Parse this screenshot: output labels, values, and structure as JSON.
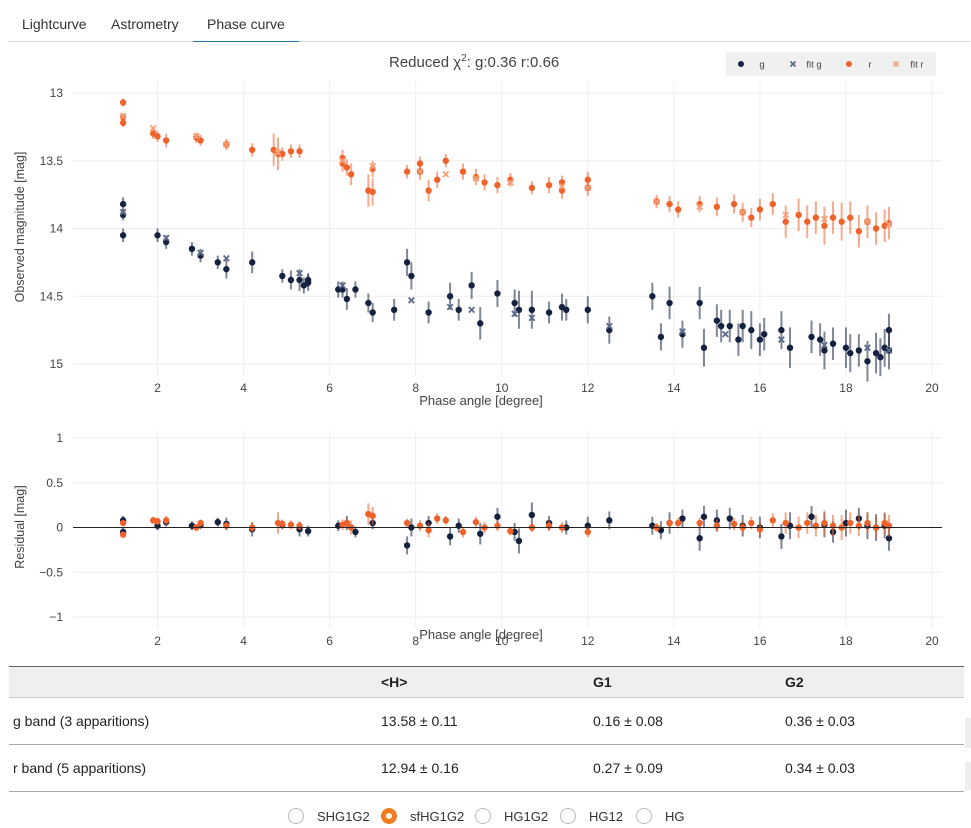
{
  "tabs": [
    {
      "label": "Lightcurve",
      "active": false
    },
    {
      "label": "Astrometry",
      "active": false
    },
    {
      "label": "Phase curve",
      "active": true
    }
  ],
  "colors": {
    "g": "#15223f",
    "g_fit": "#5c6c8a",
    "r": "#f0622b",
    "r_fit": "#f5a07a",
    "tab_underline": "#1f77b4",
    "radio_checked": "#f07d1e"
  },
  "chart_data": [
    {
      "type": "scatter",
      "title_prefix": "Reduced",
      "title_chi": "χ",
      "title_sup": "2",
      "title_g": "g:0.36",
      "title_r": "r:0.66",
      "xlabel": "Phase angle [degree]",
      "ylabel": "Observed magnitude [mag]",
      "xlim": [
        0.5,
        20
      ],
      "ylim": [
        13,
        15
      ],
      "y_reversed": true,
      "xticks": [
        2,
        4,
        6,
        8,
        10,
        12,
        14,
        16,
        18,
        20
      ],
      "yticks": [
        13,
        13.5,
        14,
        14.5,
        15
      ],
      "ytick_labels": [
        "13",
        "13.5",
        "14",
        "14.5",
        "15"
      ],
      "grid": true,
      "legend_position": "top-right",
      "legend": [
        {
          "label": "g",
          "symbol": "dot",
          "color": "#15223f"
        },
        {
          "label": "fit g",
          "symbol": "x",
          "color": "#5c6c8a"
        },
        {
          "label": "r",
          "symbol": "dot",
          "color": "#f0622b"
        },
        {
          "label": "fit r",
          "symbol": "x",
          "color": "#f5a07a"
        }
      ],
      "series": [
        {
          "name": "g",
          "mode": "markers+errorbars",
          "x": [
            1.2,
            1.2,
            1.2,
            2.0,
            2.2,
            2.8,
            3.0,
            3.4,
            3.6,
            4.2,
            4.9,
            5.1,
            5.3,
            5.4,
            5.5,
            5.5,
            6.2,
            6.3,
            6.4,
            6.6,
            6.9,
            7.0,
            7.5,
            7.8,
            7.9,
            8.3,
            8.8,
            9.0,
            9.3,
            9.5,
            9.9,
            10.3,
            10.4,
            10.7,
            11.1,
            11.4,
            11.5,
            12.0,
            12.5,
            13.5,
            13.7,
            13.9,
            14.2,
            14.6,
            14.7,
            15.0,
            15.1,
            15.3,
            15.5,
            15.6,
            15.8,
            16.0,
            16.1,
            16.5,
            16.7,
            17.2,
            17.4,
            17.5,
            17.7,
            18.0,
            18.1,
            18.3,
            18.5,
            18.7,
            18.8,
            18.9,
            19.0,
            19.0
          ],
          "y": [
            13.82,
            13.9,
            14.05,
            14.05,
            14.1,
            14.15,
            14.2,
            14.25,
            14.3,
            14.25,
            14.35,
            14.38,
            14.38,
            14.42,
            14.4,
            14.38,
            14.45,
            14.45,
            14.52,
            14.45,
            14.55,
            14.62,
            14.6,
            14.25,
            14.35,
            14.62,
            14.5,
            14.6,
            14.42,
            14.7,
            14.48,
            14.55,
            14.6,
            14.6,
            14.62,
            14.58,
            14.6,
            14.6,
            14.75,
            14.5,
            14.8,
            14.55,
            14.78,
            14.55,
            14.88,
            14.68,
            14.72,
            14.72,
            14.82,
            14.72,
            14.75,
            14.82,
            14.78,
            14.75,
            14.88,
            14.8,
            14.82,
            14.9,
            14.85,
            14.88,
            14.92,
            14.9,
            14.98,
            14.92,
            14.95,
            14.88,
            14.75,
            14.9
          ],
          "yerr": [
            0.05,
            0.04,
            0.05,
            0.05,
            0.05,
            0.05,
            0.05,
            0.05,
            0.07,
            0.08,
            0.05,
            0.07,
            0.08,
            0.06,
            0.06,
            0.05,
            0.06,
            0.06,
            0.08,
            0.06,
            0.07,
            0.07,
            0.08,
            0.1,
            0.1,
            0.08,
            0.1,
            0.08,
            0.1,
            0.12,
            0.1,
            0.1,
            0.14,
            0.14,
            0.08,
            0.1,
            0.08,
            0.1,
            0.1,
            0.1,
            0.1,
            0.12,
            0.1,
            0.12,
            0.14,
            0.12,
            0.12,
            0.12,
            0.12,
            0.12,
            0.14,
            0.12,
            0.12,
            0.14,
            0.15,
            0.12,
            0.12,
            0.14,
            0.12,
            0.15,
            0.14,
            0.12,
            0.15,
            0.15,
            0.14,
            0.14,
            0.12,
            0.14
          ]
        },
        {
          "name": "fit g",
          "mode": "markers",
          "x": [
            1.2,
            2.2,
            3.0,
            3.6,
            5.3,
            6.3,
            7.9,
            8.8,
            9.3,
            10.3,
            10.7,
            12.5,
            14.2,
            15.2,
            16.5,
            17.5,
            18.5,
            19.0
          ],
          "y": [
            13.88,
            14.07,
            14.18,
            14.22,
            14.33,
            14.42,
            14.53,
            14.58,
            14.6,
            14.63,
            14.66,
            14.72,
            14.76,
            14.78,
            14.82,
            14.86,
            14.88,
            14.9
          ]
        },
        {
          "name": "r",
          "mode": "markers+errorbars",
          "x": [
            1.2,
            1.2,
            1.2,
            1.9,
            2.0,
            2.2,
            2.9,
            3.0,
            3.6,
            4.2,
            4.7,
            4.8,
            4.9,
            5.1,
            5.3,
            6.3,
            6.3,
            6.4,
            6.5,
            6.9,
            7.0,
            7.0,
            7.8,
            8.1,
            8.1,
            8.3,
            8.5,
            8.7,
            9.1,
            9.4,
            9.6,
            9.9,
            10.2,
            10.7,
            11.1,
            11.4,
            11.4,
            12.0,
            12.0,
            13.6,
            13.9,
            14.1,
            14.6,
            15.0,
            15.4,
            15.6,
            15.8,
            16.0,
            16.3,
            16.6,
            16.9,
            17.1,
            17.3,
            17.5,
            17.7,
            17.9,
            18.1,
            18.3,
            18.5,
            18.7,
            18.9,
            19.0
          ],
          "y": [
            13.07,
            13.18,
            13.22,
            13.3,
            13.32,
            13.35,
            13.33,
            13.35,
            13.38,
            13.42,
            13.42,
            13.45,
            13.45,
            13.43,
            13.43,
            13.48,
            13.52,
            13.55,
            13.6,
            13.72,
            13.73,
            13.56,
            13.58,
            13.52,
            13.58,
            13.72,
            13.64,
            13.5,
            13.58,
            13.62,
            13.66,
            13.68,
            13.64,
            13.7,
            13.68,
            13.66,
            13.72,
            13.64,
            13.7,
            13.8,
            13.82,
            13.86,
            13.82,
            13.84,
            13.82,
            13.88,
            13.92,
            13.86,
            13.82,
            13.95,
            13.9,
            13.95,
            13.92,
            13.98,
            13.92,
            13.95,
            13.92,
            14.02,
            13.95,
            14.0,
            13.98,
            13.96
          ],
          "yerr": [
            0.03,
            0.03,
            0.03,
            0.04,
            0.04,
            0.05,
            0.04,
            0.04,
            0.04,
            0.05,
            0.12,
            0.12,
            0.05,
            0.05,
            0.05,
            0.06,
            0.06,
            0.06,
            0.08,
            0.12,
            0.1,
            0.06,
            0.05,
            0.05,
            0.06,
            0.08,
            0.06,
            0.05,
            0.06,
            0.06,
            0.06,
            0.06,
            0.05,
            0.05,
            0.06,
            0.05,
            0.06,
            0.06,
            0.06,
            0.05,
            0.06,
            0.06,
            0.06,
            0.07,
            0.07,
            0.07,
            0.07,
            0.08,
            0.08,
            0.12,
            0.12,
            0.12,
            0.12,
            0.14,
            0.12,
            0.14,
            0.12,
            0.12,
            0.12,
            0.12,
            0.12,
            0.12
          ]
        },
        {
          "name": "fit r",
          "mode": "markers",
          "x": [
            1.2,
            1.9,
            2.9,
            3.6,
            4.8,
            6.3,
            7.0,
            8.1,
            8.7,
            9.4,
            10.2,
            11.4,
            12.0,
            13.6,
            14.6,
            15.6,
            16.6,
            17.5,
            18.5,
            19.0
          ],
          "y": [
            13.17,
            13.26,
            13.32,
            13.38,
            13.44,
            13.5,
            13.54,
            13.58,
            13.6,
            13.63,
            13.66,
            13.69,
            13.7,
            13.8,
            13.84,
            13.88,
            13.9,
            13.93,
            13.95,
            13.97
          ]
        }
      ]
    },
    {
      "type": "scatter",
      "xlabel": "Phase angle [degree]",
      "ylabel": "Residual [mag]",
      "xlim": [
        0.5,
        20
      ],
      "ylim": [
        -1,
        1
      ],
      "xticks": [
        2,
        4,
        6,
        8,
        10,
        12,
        14,
        16,
        18,
        20
      ],
      "yticks": [
        1,
        0.5,
        0,
        -0.5,
        -1
      ],
      "ytick_labels": [
        "1",
        "0.5",
        "0",
        "−0.5",
        "−1"
      ],
      "grid": true,
      "zero_line": true,
      "series": [
        {
          "name": "g",
          "mode": "markers+errorbars",
          "x": [
            1.2,
            1.2,
            2.0,
            2.2,
            2.8,
            3.0,
            3.4,
            3.6,
            4.2,
            4.9,
            5.3,
            5.5,
            6.2,
            6.4,
            6.6,
            7.0,
            7.8,
            7.9,
            8.3,
            8.8,
            9.0,
            9.5,
            9.9,
            10.3,
            10.4,
            10.7,
            11.1,
            11.5,
            12.0,
            12.5,
            13.5,
            13.7,
            13.9,
            14.2,
            14.6,
            14.7,
            15.0,
            15.3,
            15.6,
            16.0,
            16.5,
            16.7,
            17.2,
            17.5,
            17.7,
            18.0,
            18.3,
            18.5,
            18.7,
            18.9,
            19.0
          ],
          "y": [
            0.08,
            -0.05,
            0.02,
            0.06,
            0.02,
            0.03,
            0.06,
            0.04,
            -0.02,
            0.03,
            -0.02,
            -0.04,
            0.02,
            0.05,
            -0.05,
            0.05,
            -0.2,
            0.0,
            0.05,
            -0.1,
            0.02,
            -0.07,
            0.12,
            -0.05,
            -0.15,
            0.14,
            0.05,
            0.0,
            0.02,
            0.08,
            0.02,
            -0.03,
            0.05,
            0.1,
            -0.12,
            0.12,
            0.08,
            0.1,
            0.02,
            0.0,
            -0.1,
            0.02,
            0.12,
            0.03,
            -0.05,
            0.05,
            0.1,
            0.02,
            0.0,
            0.02,
            -0.12
          ],
          "yerr": [
            0.05,
            0.05,
            0.05,
            0.05,
            0.05,
            0.05,
            0.05,
            0.07,
            0.08,
            0.05,
            0.08,
            0.06,
            0.06,
            0.08,
            0.06,
            0.07,
            0.1,
            0.1,
            0.08,
            0.1,
            0.08,
            0.12,
            0.1,
            0.1,
            0.14,
            0.14,
            0.08,
            0.08,
            0.1,
            0.1,
            0.1,
            0.1,
            0.12,
            0.1,
            0.14,
            0.12,
            0.12,
            0.12,
            0.12,
            0.12,
            0.14,
            0.15,
            0.12,
            0.14,
            0.12,
            0.15,
            0.12,
            0.15,
            0.15,
            0.14,
            0.14
          ]
        },
        {
          "name": "r",
          "mode": "markers+errorbars",
          "x": [
            1.2,
            1.2,
            1.9,
            2.0,
            2.2,
            2.9,
            3.0,
            3.6,
            4.2,
            4.8,
            4.9,
            5.1,
            5.3,
            6.3,
            6.4,
            6.5,
            6.9,
            7.0,
            7.8,
            8.1,
            8.3,
            8.5,
            8.7,
            9.1,
            9.4,
            9.6,
            9.9,
            10.2,
            10.7,
            11.1,
            11.4,
            12.0,
            13.6,
            13.9,
            14.1,
            14.6,
            15.0,
            15.4,
            15.6,
            15.8,
            16.0,
            16.3,
            16.6,
            16.9,
            17.1,
            17.3,
            17.5,
            17.7,
            17.9,
            18.1,
            18.3,
            18.5,
            18.7,
            18.9,
            19.0
          ],
          "y": [
            0.05,
            -0.08,
            0.08,
            0.07,
            0.08,
            0.0,
            0.05,
            0.02,
            0.0,
            0.05,
            0.04,
            0.03,
            0.02,
            0.03,
            0.05,
            0.0,
            0.15,
            0.13,
            0.05,
            0.02,
            -0.03,
            0.1,
            0.08,
            -0.05,
            0.06,
            0.0,
            0.02,
            -0.04,
            0.0,
            0.02,
            0.0,
            -0.05,
            0.0,
            0.05,
            0.05,
            0.05,
            0.02,
            0.04,
            0.0,
            0.05,
            -0.02,
            0.08,
            0.05,
            0.0,
            0.05,
            0.02,
            0.05,
            0.02,
            0.0,
            0.05,
            0.02,
            0.05,
            0.0,
            0.05,
            0.02
          ],
          "yerr": [
            0.03,
            0.03,
            0.04,
            0.04,
            0.05,
            0.04,
            0.04,
            0.04,
            0.05,
            0.12,
            0.05,
            0.05,
            0.05,
            0.06,
            0.06,
            0.08,
            0.12,
            0.1,
            0.05,
            0.06,
            0.08,
            0.06,
            0.05,
            0.06,
            0.06,
            0.06,
            0.06,
            0.05,
            0.05,
            0.06,
            0.06,
            0.06,
            0.05,
            0.06,
            0.06,
            0.06,
            0.07,
            0.07,
            0.07,
            0.07,
            0.08,
            0.08,
            0.12,
            0.12,
            0.12,
            0.12,
            0.14,
            0.12,
            0.14,
            0.12,
            0.12,
            0.12,
            0.12,
            0.12,
            0.12
          ]
        }
      ]
    }
  ],
  "table": {
    "headers": [
      "",
      "<H>",
      "G1",
      "G2"
    ],
    "rows": [
      [
        "g band (3 apparitions)",
        "13.58 ± 0.11",
        "0.16 ± 0.08",
        "0.36 ± 0.03"
      ],
      [
        "r band (5 apparitions)",
        "12.94 ± 0.16",
        "0.27 ± 0.09",
        "0.34 ± 0.03"
      ]
    ]
  },
  "models": {
    "options": [
      "SHG1G2",
      "sfHG1G2",
      "HG1G2",
      "HG12",
      "HG"
    ],
    "selected": "sfHG1G2"
  }
}
